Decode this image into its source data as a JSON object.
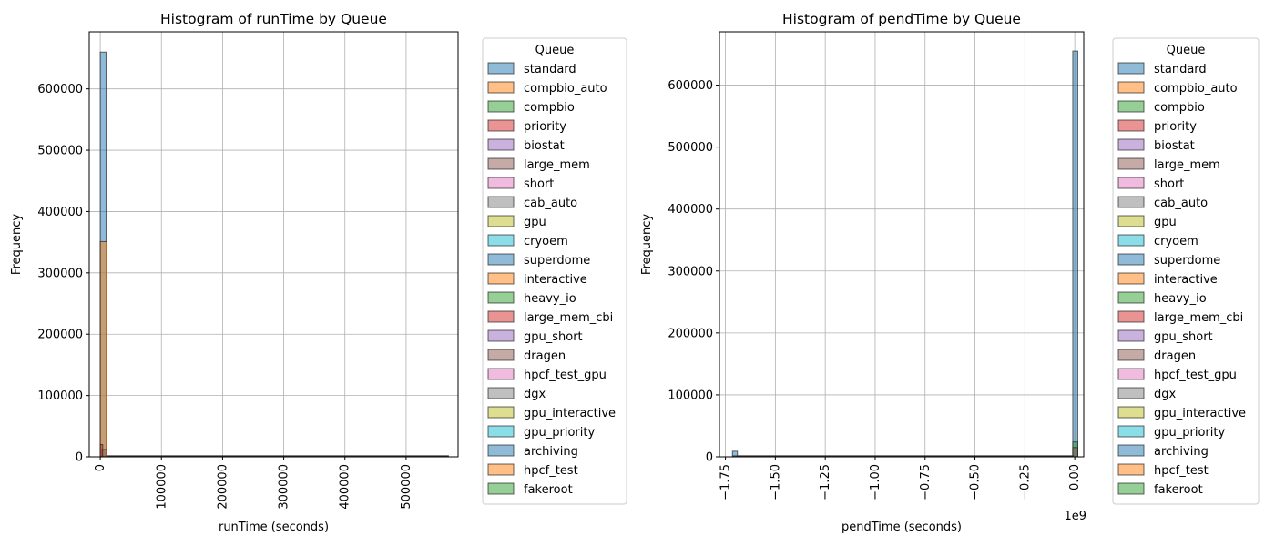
{
  "chart_data": [
    {
      "type": "histogram",
      "title": "Histogram of runTime by Queue",
      "xlabel": "runTime (seconds)",
      "ylabel": "Frequency",
      "xlim": [
        -18000,
        585000
      ],
      "ylim": [
        0,
        693000
      ],
      "x_ticks": [
        0,
        100000,
        200000,
        300000,
        400000,
        500000
      ],
      "x_tick_labels": [
        "0",
        "100000",
        "200000",
        "300000",
        "400000",
        "500000"
      ],
      "y_ticks": [
        0,
        100000,
        200000,
        300000,
        400000,
        500000,
        600000
      ],
      "y_tick_labels": [
        "0",
        "100000",
        "200000",
        "300000",
        "400000",
        "500000",
        "600000"
      ],
      "grid": true,
      "legend_position": "outside-right",
      "legend_title": "Queue",
      "series_visible": [
        {
          "name": "standard",
          "bins": [
            {
              "x0": 0,
              "x1": 9500,
              "count": 660000
            }
          ]
        },
        {
          "name": "compbio_auto",
          "bins": [
            {
              "x0": 0,
              "x1": 11000,
              "count": 351000
            }
          ]
        },
        {
          "name": "priority",
          "bins": [
            {
              "x0": 0,
              "x1": 4000,
              "count": 20000
            }
          ]
        },
        {
          "name": "large_mem",
          "bins": [
            {
              "x0": 3000,
              "x1": 11000,
              "count": 12000
            }
          ]
        }
      ],
      "tail_extent": 570000
    },
    {
      "type": "histogram",
      "title": "Histogram of pendTime by Queue",
      "xlabel": "pendTime (seconds)",
      "ylabel": "Frequency",
      "offset_label": "1e9",
      "xlim": [
        -1.78,
        0.045
      ],
      "ylim": [
        0,
        686000
      ],
      "x_ticks": [
        -1.75,
        -1.5,
        -1.25,
        -1.0,
        -0.75,
        -0.5,
        -0.25,
        0.0
      ],
      "x_tick_labels": [
        "−1.75",
        "−1.50",
        "−1.25",
        "−1.00",
        "−0.75",
        "−0.50",
        "−0.25",
        "0.00"
      ],
      "y_ticks": [
        0,
        100000,
        200000,
        300000,
        400000,
        500000,
        600000
      ],
      "y_tick_labels": [
        "0",
        "100000",
        "200000",
        "300000",
        "400000",
        "500000",
        "600000"
      ],
      "grid": true,
      "legend_position": "outside-right",
      "legend_title": "Queue",
      "series_visible": [
        {
          "name": "standard",
          "bins": [
            {
              "x0": -1.715,
              "x1": -1.69,
              "count": 9000
            },
            {
              "x0": -0.01,
              "x1": 0.015,
              "count": 655000
            }
          ]
        },
        {
          "name": "compbio",
          "bins": [
            {
              "x0": -0.01,
              "x1": 0.015,
              "count": 24000
            }
          ]
        },
        {
          "name": "large_mem",
          "bins": [
            {
              "x0": -0.01,
              "x1": 0.015,
              "count": 15000
            }
          ]
        }
      ],
      "tail_extent": -1.715
    }
  ],
  "legend": {
    "title": "Queue",
    "items": [
      {
        "name": "standard",
        "color": "#1f77b4"
      },
      {
        "name": "compbio_auto",
        "color": "#ff7f0e"
      },
      {
        "name": "compbio",
        "color": "#2ca02c"
      },
      {
        "name": "priority",
        "color": "#d62728"
      },
      {
        "name": "biostat",
        "color": "#9467bd"
      },
      {
        "name": "large_mem",
        "color": "#8c564b"
      },
      {
        "name": "short",
        "color": "#e377c2"
      },
      {
        "name": "cab_auto",
        "color": "#7f7f7f"
      },
      {
        "name": "gpu",
        "color": "#bcbd22"
      },
      {
        "name": "cryoem",
        "color": "#17becf"
      },
      {
        "name": "superdome",
        "color": "#1f77b4"
      },
      {
        "name": "interactive",
        "color": "#ff7f0e"
      },
      {
        "name": "heavy_io",
        "color": "#2ca02c"
      },
      {
        "name": "large_mem_cbi",
        "color": "#d62728"
      },
      {
        "name": "gpu_short",
        "color": "#9467bd"
      },
      {
        "name": "dragen",
        "color": "#8c564b"
      },
      {
        "name": "hpcf_test_gpu",
        "color": "#e377c2"
      },
      {
        "name": "dgx",
        "color": "#7f7f7f"
      },
      {
        "name": "gpu_interactive",
        "color": "#bcbd22"
      },
      {
        "name": "gpu_priority",
        "color": "#17becf"
      },
      {
        "name": "archiving",
        "color": "#1f77b4"
      },
      {
        "name": "hpcf_test",
        "color": "#ff7f0e"
      },
      {
        "name": "fakeroot",
        "color": "#2ca02c"
      }
    ]
  }
}
